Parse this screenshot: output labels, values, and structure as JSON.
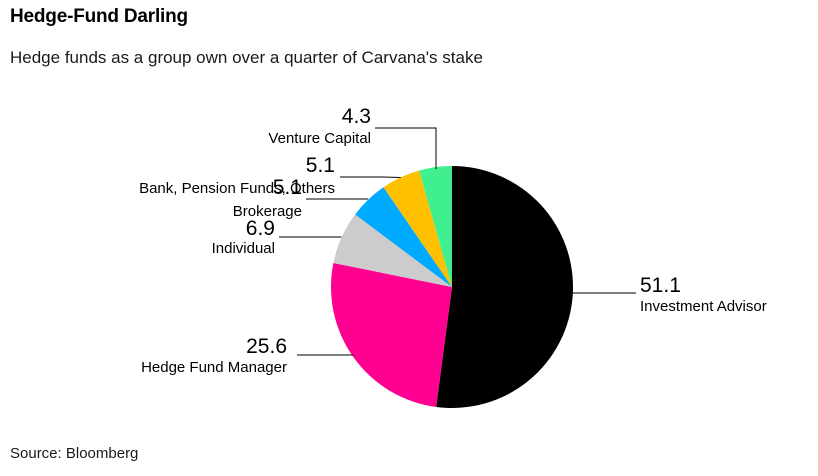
{
  "header": {
    "title": "Hedge-Fund Darling",
    "subtitle": "Hedge funds as a group own over a quarter of Carvana's stake"
  },
  "footer": {
    "source": "Source: Bloomberg"
  },
  "chart_data": {
    "type": "pie",
    "title": "Hedge-Fund Darling",
    "subtitle": "Hedge funds as a group own over a quarter of Carvana's stake",
    "start_angle_deg": 0,
    "direction": "clockwise",
    "slices": [
      {
        "label": "Investment Advisor",
        "value": 51.1,
        "display": "51.1",
        "color": "#000000"
      },
      {
        "label": "Hedge Fund Manager",
        "value": 25.6,
        "display": "25.6",
        "color": "#ff0090"
      },
      {
        "label": "Individual",
        "value": 6.9,
        "display": "6.9",
        "color": "#cccccc"
      },
      {
        "label": "Brokerage",
        "value": 5.1,
        "display": "5.1",
        "color": "#00aaff"
      },
      {
        "label": "Bank, Pension Funds, Others",
        "value": 5.1,
        "display": "5.1",
        "color": "#ffc000"
      },
      {
        "label": "Venture Capital",
        "value": 4.3,
        "display": "4.3",
        "color": "#40f090"
      }
    ]
  }
}
